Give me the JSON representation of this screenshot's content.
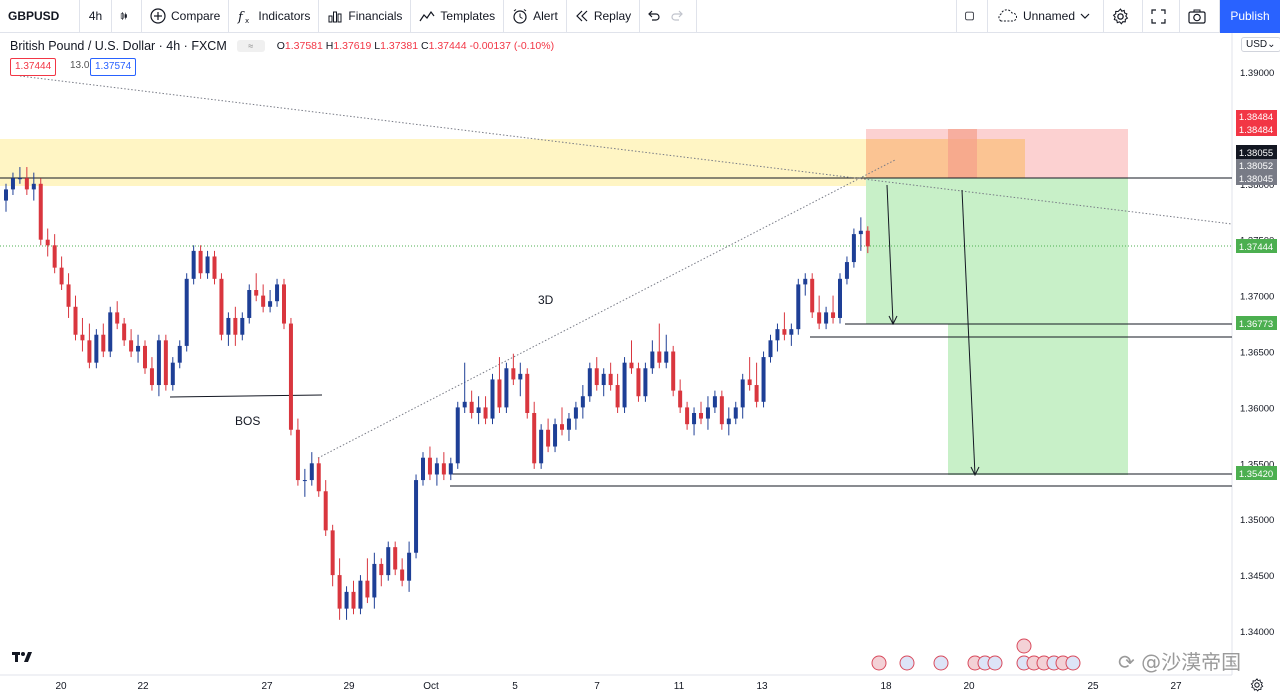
{
  "toolbar": {
    "symbol": "GBPUSD",
    "interval": "4h",
    "compare": "Compare",
    "indicators": "Indicators",
    "financials": "Financials",
    "templates": "Templates",
    "alert": "Alert",
    "replay": "Replay",
    "layout_name": "Unnamed",
    "publish": "Publish"
  },
  "legend": {
    "title": "British Pound / U.S. Dollar · 4h · FXCM",
    "open": "1.37581",
    "high": "1.37619",
    "low": "1.37381",
    "close": "1.37444",
    "change": "-0.00137 (-0.10%)",
    "sell": "1.37444",
    "spread": "13.0",
    "buy": "1.37574"
  },
  "currency": "USD",
  "watermark": "沙漠帝国",
  "colors": {
    "up": "#1e3f96",
    "down": "#d9363e",
    "supply_zone": "#fff5c4",
    "stop_zone": "#fcd1d1",
    "target_zone": "#c8f0c8",
    "entry_zone": "#fbbf7e",
    "accent": "#2962ff"
  },
  "chart_data": {
    "type": "candlestick",
    "symbol": "GBPUSD",
    "timeframe": "4h",
    "y_ticks": [
      1.34,
      1.345,
      1.35,
      1.355,
      1.36,
      1.365,
      1.37,
      1.375,
      1.38,
      1.385,
      1.39
    ],
    "x_tick_labels": [
      "20",
      "22",
      "27",
      "29",
      "Oct",
      "5",
      "7",
      "11",
      "13",
      "18",
      "20",
      "25",
      "27"
    ],
    "candles": [
      [
        1.3785,
        1.38,
        1.3775,
        1.3795
      ],
      [
        1.3795,
        1.381,
        1.379,
        1.3805
      ],
      [
        1.3805,
        1.3815,
        1.38,
        1.3805
      ],
      [
        1.3805,
        1.3815,
        1.379,
        1.3795
      ],
      [
        1.3795,
        1.381,
        1.3785,
        1.38
      ],
      [
        1.38,
        1.3805,
        1.3745,
        1.375
      ],
      [
        1.375,
        1.376,
        1.3735,
        1.3745
      ],
      [
        1.3745,
        1.3755,
        1.372,
        1.3725
      ],
      [
        1.3725,
        1.3735,
        1.3705,
        1.371
      ],
      [
        1.371,
        1.372,
        1.368,
        1.369
      ],
      [
        1.369,
        1.37,
        1.366,
        1.3665
      ],
      [
        1.3665,
        1.368,
        1.365,
        1.366
      ],
      [
        1.366,
        1.3675,
        1.3635,
        1.364
      ],
      [
        1.364,
        1.367,
        1.3635,
        1.3665
      ],
      [
        1.3665,
        1.3675,
        1.3645,
        1.365
      ],
      [
        1.365,
        1.369,
        1.3645,
        1.3685
      ],
      [
        1.3685,
        1.3695,
        1.367,
        1.3675
      ],
      [
        1.3675,
        1.368,
        1.3655,
        1.366
      ],
      [
        1.366,
        1.367,
        1.3645,
        1.365
      ],
      [
        1.365,
        1.3665,
        1.364,
        1.3655
      ],
      [
        1.3655,
        1.366,
        1.363,
        1.3635
      ],
      [
        1.3635,
        1.3645,
        1.3615,
        1.362
      ],
      [
        1.362,
        1.3665,
        1.361,
        1.366
      ],
      [
        1.366,
        1.3665,
        1.3615,
        1.362
      ],
      [
        1.362,
        1.3645,
        1.3615,
        1.364
      ],
      [
        1.364,
        1.366,
        1.3635,
        1.3655
      ],
      [
        1.3655,
        1.372,
        1.365,
        1.3715
      ],
      [
        1.3715,
        1.3745,
        1.371,
        1.374
      ],
      [
        1.374,
        1.3745,
        1.3715,
        1.372
      ],
      [
        1.372,
        1.374,
        1.3715,
        1.3735
      ],
      [
        1.3735,
        1.374,
        1.371,
        1.3715
      ],
      [
        1.3715,
        1.372,
        1.366,
        1.3665
      ],
      [
        1.3665,
        1.3685,
        1.3655,
        1.368
      ],
      [
        1.368,
        1.369,
        1.3655,
        1.3665
      ],
      [
        1.3665,
        1.3685,
        1.366,
        1.368
      ],
      [
        1.368,
        1.371,
        1.3675,
        1.3705
      ],
      [
        1.3705,
        1.372,
        1.3695,
        1.37
      ],
      [
        1.37,
        1.371,
        1.3685,
        1.369
      ],
      [
        1.369,
        1.3705,
        1.3685,
        1.3695
      ],
      [
        1.3695,
        1.3715,
        1.369,
        1.371
      ],
      [
        1.371,
        1.3715,
        1.367,
        1.3675
      ],
      [
        1.3675,
        1.368,
        1.3575,
        1.358
      ],
      [
        1.358,
        1.359,
        1.353,
        1.3535
      ],
      [
        1.3535,
        1.3545,
        1.352,
        1.3535
      ],
      [
        1.3535,
        1.356,
        1.353,
        1.355
      ],
      [
        1.355,
        1.3555,
        1.352,
        1.3525
      ],
      [
        1.3525,
        1.3535,
        1.3485,
        1.349
      ],
      [
        1.349,
        1.3495,
        1.344,
        1.345
      ],
      [
        1.345,
        1.3465,
        1.341,
        1.342
      ],
      [
        1.342,
        1.344,
        1.341,
        1.3435
      ],
      [
        1.3435,
        1.3445,
        1.3415,
        1.342
      ],
      [
        1.342,
        1.345,
        1.3415,
        1.3445
      ],
      [
        1.3445,
        1.3465,
        1.3425,
        1.343
      ],
      [
        1.343,
        1.347,
        1.342,
        1.346
      ],
      [
        1.346,
        1.3465,
        1.344,
        1.345
      ],
      [
        1.345,
        1.348,
        1.3445,
        1.3475
      ],
      [
        1.3475,
        1.348,
        1.345,
        1.3455
      ],
      [
        1.3455,
        1.3465,
        1.344,
        1.3445
      ],
      [
        1.3445,
        1.348,
        1.3435,
        1.347
      ],
      [
        1.347,
        1.354,
        1.3465,
        1.3535
      ],
      [
        1.3535,
        1.356,
        1.353,
        1.3555
      ],
      [
        1.3555,
        1.3565,
        1.3535,
        1.354
      ],
      [
        1.354,
        1.3555,
        1.353,
        1.355
      ],
      [
        1.355,
        1.356,
        1.3535,
        1.354
      ],
      [
        1.354,
        1.3555,
        1.3535,
        1.355
      ],
      [
        1.355,
        1.3605,
        1.3545,
        1.36
      ],
      [
        1.36,
        1.364,
        1.3595,
        1.3605
      ],
      [
        1.3605,
        1.3615,
        1.359,
        1.3595
      ],
      [
        1.3595,
        1.361,
        1.3585,
        1.36
      ],
      [
        1.36,
        1.361,
        1.3585,
        1.359
      ],
      [
        1.359,
        1.363,
        1.3585,
        1.3625
      ],
      [
        1.3625,
        1.3645,
        1.3595,
        1.36
      ],
      [
        1.36,
        1.364,
        1.3595,
        1.3635
      ],
      [
        1.3635,
        1.3648,
        1.362,
        1.3625
      ],
      [
        1.3625,
        1.364,
        1.361,
        1.363
      ],
      [
        1.363,
        1.3635,
        1.359,
        1.3595
      ],
      [
        1.3595,
        1.3605,
        1.3545,
        1.355
      ],
      [
        1.355,
        1.3585,
        1.3545,
        1.358
      ],
      [
        1.358,
        1.359,
        1.356,
        1.3565
      ],
      [
        1.3565,
        1.359,
        1.356,
        1.3585
      ],
      [
        1.3585,
        1.36,
        1.3575,
        1.358
      ],
      [
        1.358,
        1.3595,
        1.357,
        1.359
      ],
      [
        1.359,
        1.3605,
        1.358,
        1.36
      ],
      [
        1.36,
        1.362,
        1.359,
        1.361
      ],
      [
        1.361,
        1.364,
        1.3605,
        1.3635
      ],
      [
        1.3635,
        1.3645,
        1.3615,
        1.362
      ],
      [
        1.362,
        1.3635,
        1.361,
        1.363
      ],
      [
        1.363,
        1.364,
        1.3615,
        1.362
      ],
      [
        1.362,
        1.363,
        1.3595,
        1.36
      ],
      [
        1.36,
        1.3645,
        1.3595,
        1.364
      ],
      [
        1.364,
        1.366,
        1.363,
        1.3635
      ],
      [
        1.3635,
        1.364,
        1.3605,
        1.361
      ],
      [
        1.361,
        1.364,
        1.3605,
        1.3635
      ],
      [
        1.3635,
        1.366,
        1.363,
        1.365
      ],
      [
        1.365,
        1.3675,
        1.3635,
        1.364
      ],
      [
        1.364,
        1.3665,
        1.3635,
        1.365
      ],
      [
        1.365,
        1.3655,
        1.361,
        1.3615
      ],
      [
        1.3615,
        1.3625,
        1.3595,
        1.36
      ],
      [
        1.36,
        1.3605,
        1.358,
        1.3585
      ],
      [
        1.3585,
        1.36,
        1.3575,
        1.3595
      ],
      [
        1.3595,
        1.3605,
        1.3585,
        1.359
      ],
      [
        1.359,
        1.361,
        1.358,
        1.36
      ],
      [
        1.36,
        1.3615,
        1.3595,
        1.361
      ],
      [
        1.361,
        1.3615,
        1.358,
        1.3585
      ],
      [
        1.3585,
        1.36,
        1.3575,
        1.359
      ],
      [
        1.359,
        1.3605,
        1.3585,
        1.36
      ],
      [
        1.36,
        1.363,
        1.359,
        1.3625
      ],
      [
        1.3625,
        1.3645,
        1.3615,
        1.362
      ],
      [
        1.362,
        1.364,
        1.36,
        1.3605
      ],
      [
        1.3605,
        1.365,
        1.36,
        1.3645
      ],
      [
        1.3645,
        1.3665,
        1.364,
        1.366
      ],
      [
        1.366,
        1.3675,
        1.365,
        1.367
      ],
      [
        1.367,
        1.3685,
        1.366,
        1.3665
      ],
      [
        1.3665,
        1.3675,
        1.3655,
        1.367
      ],
      [
        1.367,
        1.3715,
        1.3665,
        1.371
      ],
      [
        1.371,
        1.372,
        1.37,
        1.3715
      ],
      [
        1.3715,
        1.372,
        1.368,
        1.3685
      ],
      [
        1.3685,
        1.37,
        1.367,
        1.3675
      ],
      [
        1.3675,
        1.369,
        1.367,
        1.3685
      ],
      [
        1.3685,
        1.37,
        1.3675,
        1.368
      ],
      [
        1.368,
        1.372,
        1.3675,
        1.3715
      ],
      [
        1.3715,
        1.3735,
        1.371,
        1.373
      ],
      [
        1.373,
        1.376,
        1.3725,
        1.3755
      ],
      [
        1.3755,
        1.377,
        1.374,
        1.3758
      ],
      [
        1.3758,
        1.3762,
        1.3738,
        1.3744
      ]
    ],
    "annotations": {
      "labels": [
        "BOS",
        "3D"
      ],
      "price_levels": [
        "1.38484",
        "1.38484",
        "1.38055",
        "1.38052",
        "1.38045",
        "1.37444",
        "1.36773",
        "1.35420"
      ]
    }
  }
}
